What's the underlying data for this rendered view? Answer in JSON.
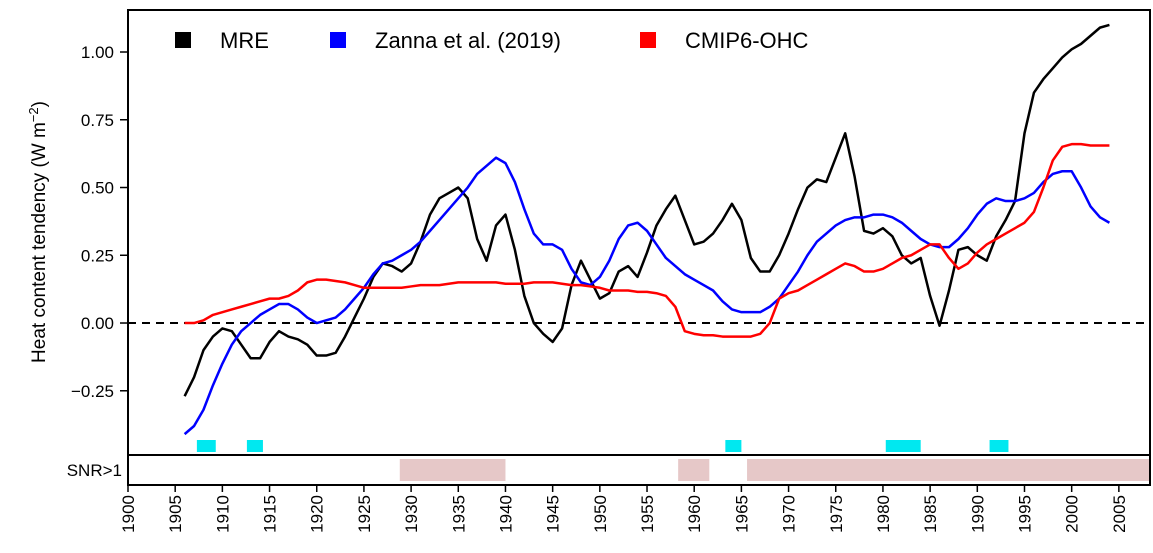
{
  "chart_data": {
    "type": "line",
    "ylabel": {
      "text": "Heat content tendency (W m",
      "sup": "−2",
      "tail": ")"
    },
    "x": [
      1906,
      1907,
      1908,
      1909,
      1910,
      1911,
      1912,
      1913,
      1914,
      1915,
      1916,
      1917,
      1918,
      1919,
      1920,
      1921,
      1922,
      1923,
      1924,
      1925,
      1926,
      1927,
      1928,
      1929,
      1930,
      1931,
      1932,
      1933,
      1934,
      1935,
      1936,
      1937,
      1938,
      1939,
      1940,
      1941,
      1942,
      1943,
      1944,
      1945,
      1946,
      1947,
      1948,
      1949,
      1950,
      1951,
      1952,
      1953,
      1954,
      1955,
      1956,
      1957,
      1958,
      1959,
      1960,
      1961,
      1962,
      1963,
      1964,
      1965,
      1966,
      1967,
      1968,
      1969,
      1970,
      1971,
      1972,
      1973,
      1974,
      1975,
      1976,
      1977,
      1978,
      1979,
      1980,
      1981,
      1982,
      1983,
      1984,
      1985,
      1986,
      1987,
      1988,
      1989,
      1990,
      1991,
      1992,
      1993,
      1994,
      1995,
      1996,
      1997,
      1998,
      1999,
      2000,
      2001,
      2002,
      2003,
      2004
    ],
    "series": [
      {
        "name": "MRE",
        "color": "#000000",
        "values": [
          -0.27,
          -0.2,
          -0.1,
          -0.05,
          -0.02,
          -0.03,
          -0.08,
          -0.13,
          -0.13,
          -0.07,
          -0.03,
          -0.05,
          -0.06,
          -0.08,
          -0.12,
          -0.12,
          -0.11,
          -0.05,
          0.02,
          0.09,
          0.17,
          0.22,
          0.21,
          0.19,
          0.22,
          0.3,
          0.4,
          0.46,
          0.48,
          0.5,
          0.46,
          0.31,
          0.23,
          0.36,
          0.4,
          0.27,
          0.1,
          0.0,
          -0.04,
          -0.07,
          -0.02,
          0.14,
          0.23,
          0.16,
          0.09,
          0.11,
          0.19,
          0.21,
          0.17,
          0.26,
          0.36,
          0.42,
          0.47,
          0.38,
          0.29,
          0.3,
          0.33,
          0.38,
          0.44,
          0.38,
          0.24,
          0.19,
          0.19,
          0.25,
          0.33,
          0.42,
          0.5,
          0.53,
          0.52,
          0.61,
          0.7,
          0.54,
          0.34,
          0.33,
          0.35,
          0.32,
          0.25,
          0.22,
          0.24,
          0.1,
          -0.01,
          0.12,
          0.27,
          0.28,
          0.25,
          0.23,
          0.32,
          0.38,
          0.45,
          0.7,
          0.85,
          0.9,
          0.94,
          0.98,
          1.01,
          1.03,
          1.06,
          1.09,
          1.1
        ]
      },
      {
        "name": "Zanna et al. (2019)",
        "color": "#0000ff",
        "values": [
          -0.41,
          -0.38,
          -0.32,
          -0.23,
          -0.15,
          -0.08,
          -0.03,
          0.0,
          0.03,
          0.05,
          0.07,
          0.07,
          0.05,
          0.02,
          0.0,
          0.01,
          0.02,
          0.05,
          0.09,
          0.13,
          0.18,
          0.22,
          0.23,
          0.25,
          0.27,
          0.3,
          0.34,
          0.38,
          0.42,
          0.46,
          0.5,
          0.55,
          0.58,
          0.61,
          0.59,
          0.52,
          0.42,
          0.33,
          0.29,
          0.29,
          0.27,
          0.2,
          0.15,
          0.14,
          0.17,
          0.23,
          0.31,
          0.36,
          0.37,
          0.34,
          0.29,
          0.24,
          0.21,
          0.18,
          0.16,
          0.14,
          0.12,
          0.08,
          0.05,
          0.04,
          0.04,
          0.04,
          0.06,
          0.09,
          0.14,
          0.19,
          0.25,
          0.3,
          0.33,
          0.36,
          0.38,
          0.39,
          0.39,
          0.4,
          0.4,
          0.39,
          0.37,
          0.34,
          0.31,
          0.29,
          0.28,
          0.28,
          0.31,
          0.35,
          0.4,
          0.44,
          0.46,
          0.45,
          0.45,
          0.46,
          0.48,
          0.52,
          0.55,
          0.56,
          0.56,
          0.5,
          0.43,
          0.39,
          0.37
        ]
      },
      {
        "name": "CMIP6-OHC",
        "color": "#ff0000",
        "values": [
          0.0,
          0.0,
          0.01,
          0.03,
          0.04,
          0.05,
          0.06,
          0.07,
          0.08,
          0.09,
          0.09,
          0.1,
          0.12,
          0.15,
          0.16,
          0.16,
          0.155,
          0.15,
          0.14,
          0.13,
          0.13,
          0.13,
          0.13,
          0.13,
          0.135,
          0.14,
          0.14,
          0.14,
          0.145,
          0.15,
          0.15,
          0.15,
          0.15,
          0.15,
          0.145,
          0.145,
          0.145,
          0.15,
          0.15,
          0.15,
          0.145,
          0.14,
          0.14,
          0.135,
          0.13,
          0.12,
          0.12,
          0.12,
          0.115,
          0.115,
          0.11,
          0.1,
          0.06,
          -0.03,
          -0.04,
          -0.045,
          -0.045,
          -0.05,
          -0.05,
          -0.05,
          -0.05,
          -0.04,
          0.0,
          0.09,
          0.11,
          0.12,
          0.14,
          0.16,
          0.18,
          0.2,
          0.22,
          0.21,
          0.19,
          0.19,
          0.2,
          0.22,
          0.24,
          0.25,
          0.27,
          0.29,
          0.29,
          0.24,
          0.2,
          0.22,
          0.26,
          0.29,
          0.31,
          0.33,
          0.35,
          0.37,
          0.41,
          0.5,
          0.6,
          0.65,
          0.66,
          0.66,
          0.655,
          0.655,
          0.655
        ]
      }
    ],
    "xlim": [
      1900,
      2008.3
    ],
    "xticks": [
      1900,
      1905,
      1910,
      1915,
      1920,
      1925,
      1930,
      1935,
      1940,
      1945,
      1950,
      1955,
      1960,
      1965,
      1970,
      1975,
      1980,
      1985,
      1990,
      1995,
      2000,
      2005
    ],
    "ylim": [
      -0.487,
      1.155
    ],
    "yticks": [
      {
        "value": -0.25,
        "label": "−0.25"
      },
      {
        "value": 0,
        "label": "0.00"
      },
      0.25,
      {
        "value": 0.5,
        "label": "0.50"
      },
      0.75,
      {
        "value": 1,
        "label": "1.00"
      }
    ],
    "reference_line": 0,
    "highlight_intervals": [
      [
        1907.3,
        1909.3
      ],
      [
        1912.6,
        1914.3
      ],
      [
        1963.3,
        1965.0
      ],
      [
        1980.3,
        1984.0
      ],
      [
        1991.3,
        1993.3
      ]
    ],
    "highlight_color": "#00e8f0",
    "snr_label": "SNR>1",
    "snr_intervals": [
      [
        1928.8,
        1940.0
      ],
      [
        1958.3,
        1961.6
      ],
      [
        1965.6,
        2008.3
      ]
    ],
    "snr_color": "#e6c8c8",
    "legend": "top-left"
  }
}
